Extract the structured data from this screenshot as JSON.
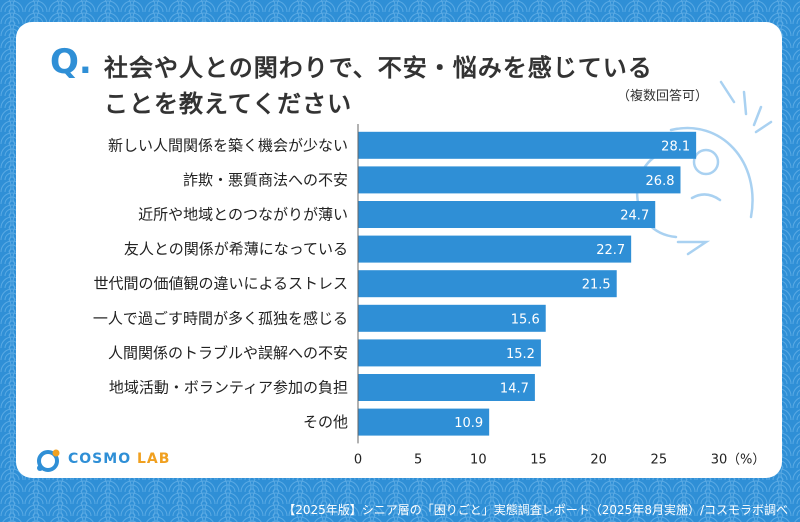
{
  "header": {
    "q_mark": "Q.",
    "title_line1": "社会や人との関わりで、不安・悩みを感じている",
    "title_line2": "ことを教えてください",
    "note": "（複数回答可）"
  },
  "brand": {
    "logo_main": "COSMO",
    "logo_sub": "LAB",
    "primary_color": "#2f8fd6",
    "bar_color": "#2f8fd6",
    "accent_color": "#f0a020"
  },
  "footer": {
    "source": "【2025年版】シニア層の「困りごと」実態調査レポート（2025年8月実施）/コスモラボ調べ"
  },
  "chart_data": {
    "type": "bar",
    "orientation": "horizontal",
    "categories": [
      "新しい人間関係を築く機会が少ない",
      "詐欺・悪質商法への不安",
      "近所や地域とのつながりが薄い",
      "友人との関係が希薄になっている",
      "世代間の価値観の違いによるストレス",
      "一人で過ごす時間が多く孤独を感じる",
      "人間関係のトラブルや誤解への不安",
      "地域活動・ボランティア参加の負担",
      "その他"
    ],
    "values": [
      28.1,
      26.8,
      24.7,
      22.7,
      21.5,
      15.6,
      15.2,
      14.7,
      10.9
    ],
    "value_labels": [
      "28.1",
      "26.8",
      "24.7",
      "22.7",
      "21.5",
      "15.6",
      "15.2",
      "14.7",
      "10.9"
    ],
    "xlim": [
      0,
      30
    ],
    "x_ticks": [
      "0",
      "5",
      "10",
      "15",
      "20",
      "25",
      "30"
    ],
    "x_unit": "（%）",
    "grid": false
  }
}
